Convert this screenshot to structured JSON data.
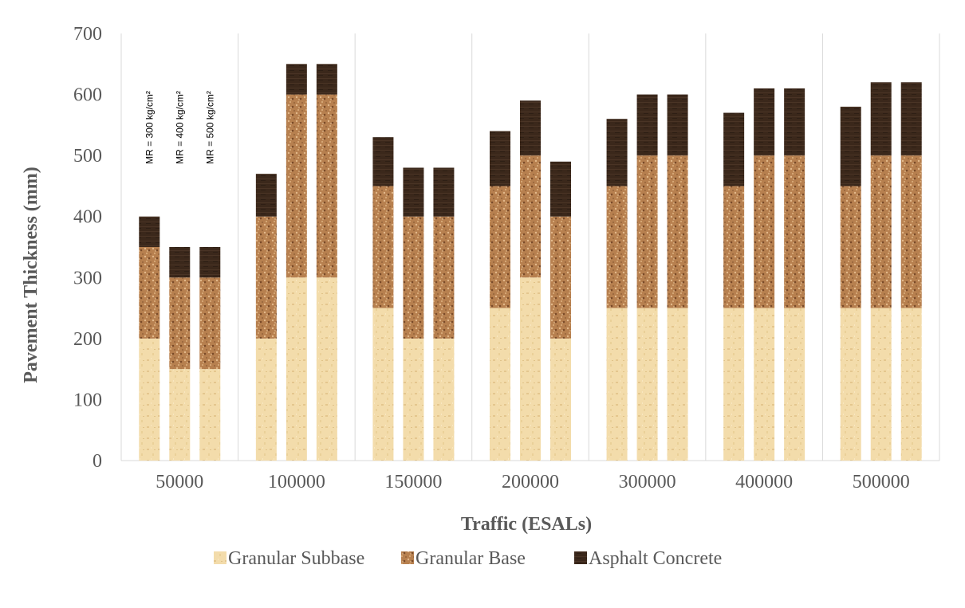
{
  "chart_data": {
    "type": "bar",
    "stacked": true,
    "title": "",
    "xlabel": "Traffic (ESALs)",
    "ylabel": "Pavement Thickness (mm)",
    "ylim": [
      0,
      700
    ],
    "yticks": [
      0,
      100,
      200,
      300,
      400,
      500,
      600,
      700
    ],
    "grid": "vertical",
    "legend_position": "bottom",
    "categories": [
      "50000",
      "100000",
      "150000",
      "200000",
      "300000",
      "400000",
      "500000"
    ],
    "bars_per_category": 3,
    "bar_labels": [
      "MR = 300 kg/cm²",
      "MR = 400 kg/cm²",
      "MR = 500 kg/cm²"
    ],
    "series": [
      {
        "name": "Granular Subbase",
        "color": "#f2d9a6",
        "values": [
          [
            200,
            150,
            150
          ],
          [
            200,
            300,
            300
          ],
          [
            250,
            200,
            200
          ],
          [
            250,
            300,
            200
          ],
          [
            250,
            250,
            250
          ],
          [
            250,
            250,
            250
          ],
          [
            250,
            250,
            250
          ]
        ]
      },
      {
        "name": "Granular Base",
        "color": "#b97e4e",
        "values": [
          [
            150,
            150,
            150
          ],
          [
            200,
            300,
            300
          ],
          [
            200,
            200,
            200
          ],
          [
            200,
            200,
            200
          ],
          [
            200,
            250,
            250
          ],
          [
            200,
            250,
            250
          ],
          [
            200,
            250,
            250
          ]
        ]
      },
      {
        "name": "Asphalt Concrete",
        "color": "#3e2a1c",
        "values": [
          [
            50,
            50,
            50
          ],
          [
            70,
            50,
            50
          ],
          [
            80,
            80,
            80
          ],
          [
            90,
            90,
            90
          ],
          [
            110,
            100,
            100
          ],
          [
            120,
            110,
            110
          ],
          [
            130,
            120,
            120
          ]
        ]
      }
    ]
  }
}
